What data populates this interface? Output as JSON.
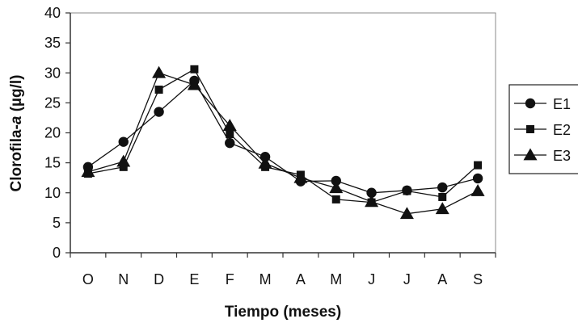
{
  "chart_data": {
    "type": "line",
    "title": "",
    "xlabel": "Tiempo (meses)",
    "ylabel": "Clorofila-a (µg/l)",
    "ylabel_parts": [
      "Clorofila-",
      "a",
      " (µg/l)"
    ],
    "categories": [
      "O",
      "N",
      "D",
      "E",
      "F",
      "M",
      "A",
      "M",
      "J",
      "J",
      "A",
      "S"
    ],
    "ylim": [
      0,
      40
    ],
    "yticks": [
      0,
      5,
      10,
      15,
      20,
      25,
      30,
      35,
      40
    ],
    "grid": false,
    "legend_position": "right",
    "series": [
      {
        "name": "E1",
        "marker": "circle",
        "values": [
          14.3,
          18.5,
          23.5,
          28.7,
          18.3,
          16.0,
          11.9,
          12.0,
          10.0,
          10.4,
          10.9,
          12.4
        ]
      },
      {
        "name": "E2",
        "marker": "square",
        "values": [
          13.2,
          14.3,
          27.2,
          30.6,
          19.8,
          14.3,
          13.0,
          8.9,
          8.4,
          10.3,
          9.3,
          14.6
        ]
      },
      {
        "name": "E3",
        "marker": "triangle",
        "values": [
          13.5,
          15.2,
          30.0,
          28.0,
          21.2,
          14.9,
          12.5,
          10.8,
          8.5,
          6.5,
          7.3,
          10.3
        ]
      }
    ],
    "colors": {
      "line": "#111111",
      "axis": "#333333",
      "background": "#ffffff"
    }
  }
}
